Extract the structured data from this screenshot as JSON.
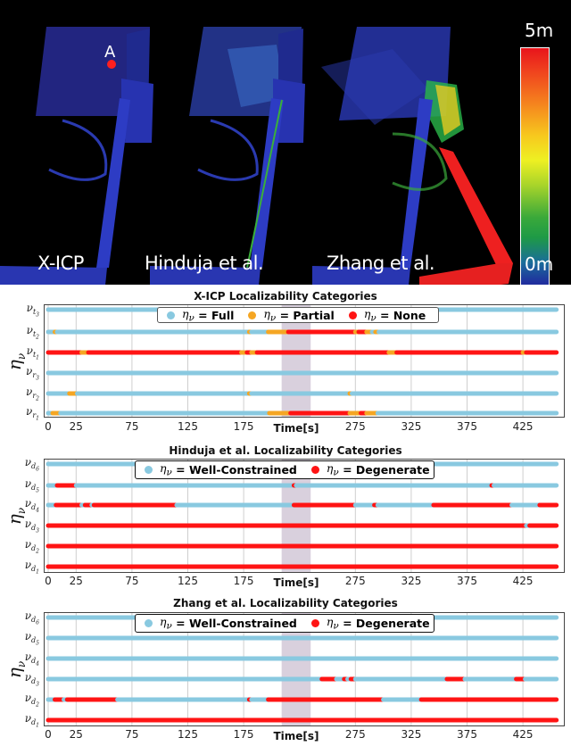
{
  "map_panel": {
    "labels": [
      "X-ICP",
      "Hinduja et al.",
      "Zhang et al."
    ],
    "point_marker": "A",
    "colorbar": {
      "max_label": "5m",
      "min_label": "0m"
    }
  },
  "colors": {
    "light_blue": "#89c9e0",
    "orange": "#f5a623",
    "red": "#ff1414",
    "shade": "#d9d0dd"
  },
  "chart_data": [
    {
      "type": "scatter",
      "title": "X-ICP Localizability Categories",
      "xlabel": "Time[s]",
      "ylabel": "η_ν",
      "xticks": [
        0,
        25,
        75,
        125,
        175,
        275,
        325,
        375,
        425
      ],
      "xlim": [
        0,
        455
      ],
      "shaded_region": [
        209,
        235
      ],
      "legend": [
        {
          "label": "η_ν = Full",
          "color": "#89c9e0"
        },
        {
          "label": "η_ν = Partial",
          "color": "#f5a623"
        },
        {
          "label": "η_ν = None",
          "color": "#ff1414"
        }
      ],
      "rows": [
        {
          "label": "ν_t3",
          "segments": [
            [
              0,
              455,
              "Full"
            ]
          ]
        },
        {
          "label": "ν_t2",
          "segments": [
            [
              0,
              6,
              "Full"
            ],
            [
              6,
              8,
              "Partial"
            ],
            [
              8,
              180,
              "Full"
            ],
            [
              180,
              182,
              "Partial"
            ],
            [
              182,
              197,
              "Full"
            ],
            [
              197,
              215,
              "Partial"
            ],
            [
              215,
              275,
              "None"
            ],
            [
              275,
              278,
              "Partial"
            ],
            [
              278,
              285,
              "None"
            ],
            [
              285,
              290,
              "Partial"
            ],
            [
              290,
              293,
              "Full"
            ],
            [
              293,
              296,
              "Partial"
            ],
            [
              296,
              455,
              "Full"
            ]
          ]
        },
        {
          "label": "ν_t1",
          "segments": [
            [
              0,
              30,
              "None"
            ],
            [
              30,
              36,
              "Partial"
            ],
            [
              36,
              173,
              "None"
            ],
            [
              173,
              178,
              "Partial"
            ],
            [
              178,
              182,
              "None"
            ],
            [
              182,
              187,
              "Partial"
            ],
            [
              187,
              305,
              "None"
            ],
            [
              305,
              312,
              "Partial"
            ],
            [
              312,
              425,
              "None"
            ],
            [
              425,
              428,
              "Partial"
            ],
            [
              428,
              455,
              "None"
            ]
          ]
        },
        {
          "label": "ν_r3",
          "segments": [
            [
              0,
              455,
              "Full"
            ]
          ]
        },
        {
          "label": "ν_r2",
          "segments": [
            [
              0,
              19,
              "Full"
            ],
            [
              19,
              26,
              "Partial"
            ],
            [
              26,
              180,
              "Full"
            ],
            [
              180,
              182,
              "Partial"
            ],
            [
              182,
              270,
              "Full"
            ],
            [
              270,
              272,
              "Partial"
            ],
            [
              272,
              455,
              "Full"
            ]
          ]
        },
        {
          "label": "ν_r1",
          "segments": [
            [
              0,
              4,
              "Full"
            ],
            [
              4,
              11,
              "Partial"
            ],
            [
              11,
              198,
              "Full"
            ],
            [
              198,
              217,
              "Partial"
            ],
            [
              217,
              270,
              "None"
            ],
            [
              270,
              280,
              "Partial"
            ],
            [
              280,
              285,
              "None"
            ],
            [
              285,
              295,
              "Partial"
            ],
            [
              295,
              455,
              "Full"
            ]
          ]
        }
      ]
    },
    {
      "type": "scatter",
      "title": "Hinduja et al. Localizability Categories",
      "xlabel": "Time[s]",
      "ylabel": "η_ν",
      "xticks": [
        0,
        25,
        75,
        125,
        175,
        275,
        325,
        375,
        425
      ],
      "xlim": [
        0,
        455
      ],
      "shaded_region": [
        209,
        235
      ],
      "legend": [
        {
          "label": "η_ν = Well-Constrained",
          "color": "#89c9e0"
        },
        {
          "label": "η_ν = Degenerate",
          "color": "#ff1414"
        }
      ],
      "rows": [
        {
          "label": "ν_d6",
          "segments": [
            [
              0,
              455,
              "Well-Constrained"
            ]
          ]
        },
        {
          "label": "ν_d5",
          "segments": [
            [
              0,
              8,
              "Well-Constrained"
            ],
            [
              8,
              25,
              "Degenerate"
            ],
            [
              25,
              220,
              "Well-Constrained"
            ],
            [
              220,
              222,
              "Degenerate"
            ],
            [
              222,
              397,
              "Well-Constrained"
            ],
            [
              397,
              399,
              "Degenerate"
            ],
            [
              399,
              455,
              "Well-Constrained"
            ]
          ]
        },
        {
          "label": "ν_d4",
          "segments": [
            [
              0,
              7,
              "Well-Constrained"
            ],
            [
              7,
              30,
              "Degenerate"
            ],
            [
              30,
              33,
              "Well-Constrained"
            ],
            [
              33,
              39,
              "Degenerate"
            ],
            [
              39,
              41,
              "Well-Constrained"
            ],
            [
              41,
              115,
              "Degenerate"
            ],
            [
              115,
              220,
              "Well-Constrained"
            ],
            [
              220,
              275,
              "Degenerate"
            ],
            [
              275,
              292,
              "Well-Constrained"
            ],
            [
              292,
              295,
              "Degenerate"
            ],
            [
              295,
              345,
              "Well-Constrained"
            ],
            [
              345,
              415,
              "Degenerate"
            ],
            [
              415,
              440,
              "Well-Constrained"
            ],
            [
              440,
              455,
              "Degenerate"
            ]
          ]
        },
        {
          "label": "ν_d3",
          "segments": [
            [
              0,
              428,
              "Degenerate"
            ],
            [
              428,
              431,
              "Well-Constrained"
            ],
            [
              431,
              455,
              "Degenerate"
            ]
          ]
        },
        {
          "label": "ν_d2",
          "segments": [
            [
              0,
              455,
              "Degenerate"
            ]
          ]
        },
        {
          "label": "ν_d1",
          "segments": [
            [
              0,
              455,
              "Degenerate"
            ]
          ]
        }
      ]
    },
    {
      "type": "scatter",
      "title": "Zhang et al. Localizability Categories",
      "xlabel": "Time[s]",
      "ylabel": "η_ν",
      "xticks": [
        0,
        25,
        75,
        125,
        175,
        275,
        325,
        375,
        425
      ],
      "xlim": [
        0,
        455
      ],
      "shaded_region": [
        209,
        235
      ],
      "legend": [
        {
          "label": "η_ν = Well-Constrained",
          "color": "#89c9e0"
        },
        {
          "label": "η_ν = Degenerate",
          "color": "#ff1414"
        }
      ],
      "rows": [
        {
          "label": "ν_d6",
          "segments": [
            [
              0,
              455,
              "Well-Constrained"
            ]
          ]
        },
        {
          "label": "ν_d5",
          "segments": [
            [
              0,
              455,
              "Well-Constrained"
            ]
          ]
        },
        {
          "label": "ν_d4",
          "segments": [
            [
              0,
              455,
              "Well-Constrained"
            ]
          ]
        },
        {
          "label": "ν_d3",
          "segments": [
            [
              0,
              245,
              "Well-Constrained"
            ],
            [
              245,
              258,
              "Degenerate"
            ],
            [
              258,
              265,
              "Well-Constrained"
            ],
            [
              265,
              268,
              "Degenerate"
            ],
            [
              268,
              271,
              "Well-Constrained"
            ],
            [
              271,
              275,
              "Degenerate"
            ],
            [
              275,
              357,
              "Well-Constrained"
            ],
            [
              357,
              373,
              "Degenerate"
            ],
            [
              373,
              419,
              "Well-Constrained"
            ],
            [
              419,
              427,
              "Degenerate"
            ],
            [
              427,
              455,
              "Well-Constrained"
            ]
          ]
        },
        {
          "label": "ν_d2",
          "segments": [
            [
              0,
              6,
              "Well-Constrained"
            ],
            [
              6,
              14,
              "Degenerate"
            ],
            [
              14,
              17,
              "Well-Constrained"
            ],
            [
              17,
              62,
              "Degenerate"
            ],
            [
              62,
              180,
              "Well-Constrained"
            ],
            [
              180,
              182,
              "Degenerate"
            ],
            [
              182,
              197,
              "Well-Constrained"
            ],
            [
              197,
              300,
              "Degenerate"
            ],
            [
              300,
              334,
              "Well-Constrained"
            ],
            [
              334,
              455,
              "Degenerate"
            ]
          ]
        },
        {
          "label": "ν_d1",
          "segments": [
            [
              0,
              455,
              "Degenerate"
            ]
          ]
        }
      ]
    }
  ]
}
